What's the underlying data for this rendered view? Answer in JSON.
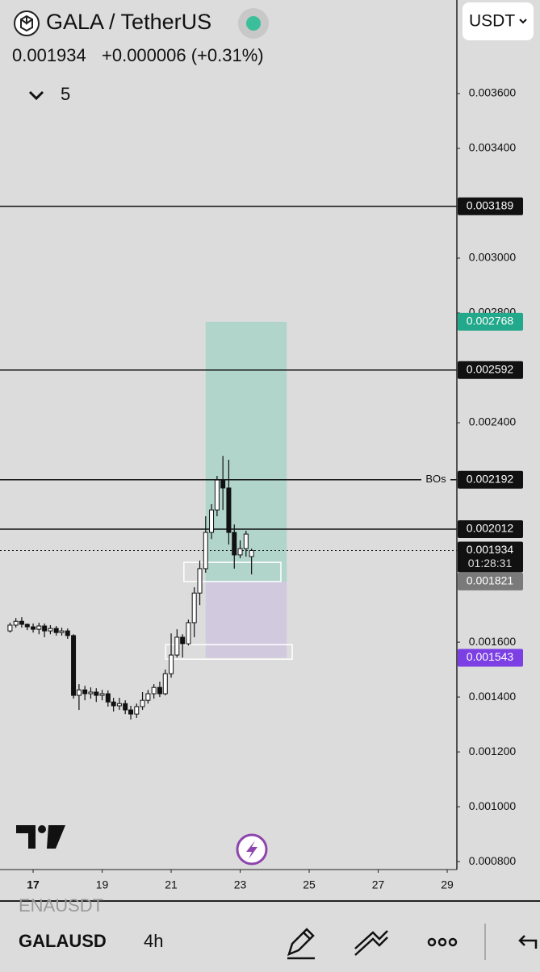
{
  "header": {
    "symbol": "GALA / TetherUS",
    "price": "0.001934",
    "change": "+0.000006 (+0.31%)",
    "indicators": "5",
    "currency": "USDT"
  },
  "chart_data": {
    "type": "candlestick",
    "x": [
      16.33,
      16.5,
      16.67,
      16.83,
      17,
      17.17,
      17.33,
      17.5,
      17.67,
      17.83,
      18,
      18.17,
      18.33,
      18.5,
      18.67,
      18.83,
      19,
      19.17,
      19.33,
      19.5,
      19.67,
      19.83,
      20,
      20.17,
      20.33,
      20.5,
      20.67,
      20.83,
      21,
      21.17,
      21.33,
      21.5,
      21.67,
      21.83,
      22,
      22.17,
      22.33,
      22.5,
      22.67,
      22.83,
      23,
      23.17,
      23.33
    ],
    "open": [
      0.001641,
      0.001662,
      0.001676,
      0.001665,
      0.001656,
      0.001647,
      0.001659,
      0.001641,
      0.00165,
      0.001635,
      0.001641,
      0.001624,
      0.001406,
      0.001426,
      0.001412,
      0.001418,
      0.001406,
      0.001412,
      0.001382,
      0.001368,
      0.001376,
      0.001353,
      0.001338,
      0.001365,
      0.001388,
      0.001412,
      0.001435,
      0.001412,
      0.001485,
      0.001553,
      0.001618,
      0.001594,
      0.001671,
      0.001779,
      0.001868,
      0.002,
      0.002082,
      0.002191,
      0.002162,
      0.002,
      0.001918,
      0.001941,
      0.001912
    ],
    "high": [
      0.001671,
      0.001688,
      0.001691,
      0.001668,
      0.001668,
      0.001671,
      0.001668,
      0.001662,
      0.001659,
      0.001653,
      0.00165,
      0.001629,
      0.001447,
      0.001441,
      0.001435,
      0.001432,
      0.001426,
      0.001424,
      0.001397,
      0.001397,
      0.001388,
      0.001368,
      0.001376,
      0.001418,
      0.001426,
      0.001447,
      0.001456,
      0.0015,
      0.001632,
      0.001647,
      0.001629,
      0.001682,
      0.0018,
      0.001897,
      0.002059,
      0.002103,
      0.002206,
      0.002279,
      0.002265,
      0.002029,
      0.001971,
      0.002006,
      0.001941
    ],
    "low": [
      0.001635,
      0.001653,
      0.001653,
      0.001644,
      0.001635,
      0.001629,
      0.001618,
      0.001629,
      0.001624,
      0.001624,
      0.001612,
      0.001394,
      0.001353,
      0.001388,
      0.001394,
      0.001382,
      0.001388,
      0.001365,
      0.001347,
      0.001353,
      0.001338,
      0.001318,
      0.001324,
      0.001353,
      0.001376,
      0.001394,
      0.0014,
      0.001406,
      0.001471,
      0.001544,
      0.001544,
      0.001588,
      0.001618,
      0.001735,
      0.001853,
      0.001976,
      0.002059,
      0.002082,
      0.001956,
      0.001868,
      0.001906,
      0.001912,
      0.001847
    ],
    "close": [
      0.001662,
      0.001676,
      0.001665,
      0.001656,
      0.001647,
      0.001659,
      0.001641,
      0.00165,
      0.001635,
      0.001641,
      0.001624,
      0.001406,
      0.001426,
      0.001412,
      0.001418,
      0.001406,
      0.001412,
      0.001382,
      0.001368,
      0.001376,
      0.001353,
      0.001338,
      0.001365,
      0.001388,
      0.001412,
      0.001435,
      0.001412,
      0.001485,
      0.001553,
      0.001618,
      0.001594,
      0.001671,
      0.001779,
      0.001868,
      0.002,
      0.002082,
      0.002191,
      0.002162,
      0.002,
      0.001918,
      0.001941,
      0.001994,
      0.001934
    ],
    "up_color": "#ffffff",
    "down_color": "#111111",
    "xlim": [
      16.04,
      29.28
    ],
    "xticks": [
      17,
      19,
      21,
      23,
      25,
      27,
      29
    ],
    "ylim": [
      0.000771,
      0.003941
    ],
    "yticks": [
      {
        "value": 0.0036,
        "label": "0.003600"
      },
      {
        "value": 0.0034,
        "label": "0.003400"
      },
      {
        "value": 0.003,
        "label": "0.003000"
      },
      {
        "value": 0.0028,
        "label": "0.002800"
      },
      {
        "value": 0.0024,
        "label": "0.002400"
      },
      {
        "value": 0.0016,
        "label": "0.001600"
      },
      {
        "value": 0.0014,
        "label": "0.001400"
      },
      {
        "value": 0.0012,
        "label": "0.001200"
      },
      {
        "value": 0.001,
        "label": "0.001000"
      },
      {
        "value": 0.0008,
        "label": "0.000800"
      }
    ],
    "lines": [
      {
        "value": 0.003189,
        "label": "0.003189"
      },
      {
        "value": 0.002592,
        "label": "0.002592"
      },
      {
        "value": 0.002192,
        "label": "0.002192",
        "name": "BOs"
      },
      {
        "value": 0.002012,
        "label": "0.002012"
      }
    ],
    "last_price": {
      "value": 0.001934,
      "label": "0.001934",
      "countdown": "01:28:31"
    },
    "position": {
      "x": [
        22.0,
        24.35
      ],
      "target": {
        "value": 0.002768,
        "label": "0.002768",
        "color": "#22a88a"
      },
      "entry": {
        "value": 0.001821,
        "label": "0.001821",
        "color": "#7a7a7a"
      },
      "stop": {
        "value": 0.001543,
        "label": "0.001543",
        "color": "#7b3fe4"
      }
    },
    "zones": [
      {
        "x": [
          21.37,
          24.18
        ],
        "y": [
          0.001821,
          0.001891
        ]
      },
      {
        "x": [
          20.84,
          24.51
        ],
        "y": [
          0.001538,
          0.001591
        ]
      }
    ]
  },
  "footer": {
    "symbols": [
      "ENAUSDT",
      "GALAUSD"
    ],
    "interval": "4h"
  }
}
